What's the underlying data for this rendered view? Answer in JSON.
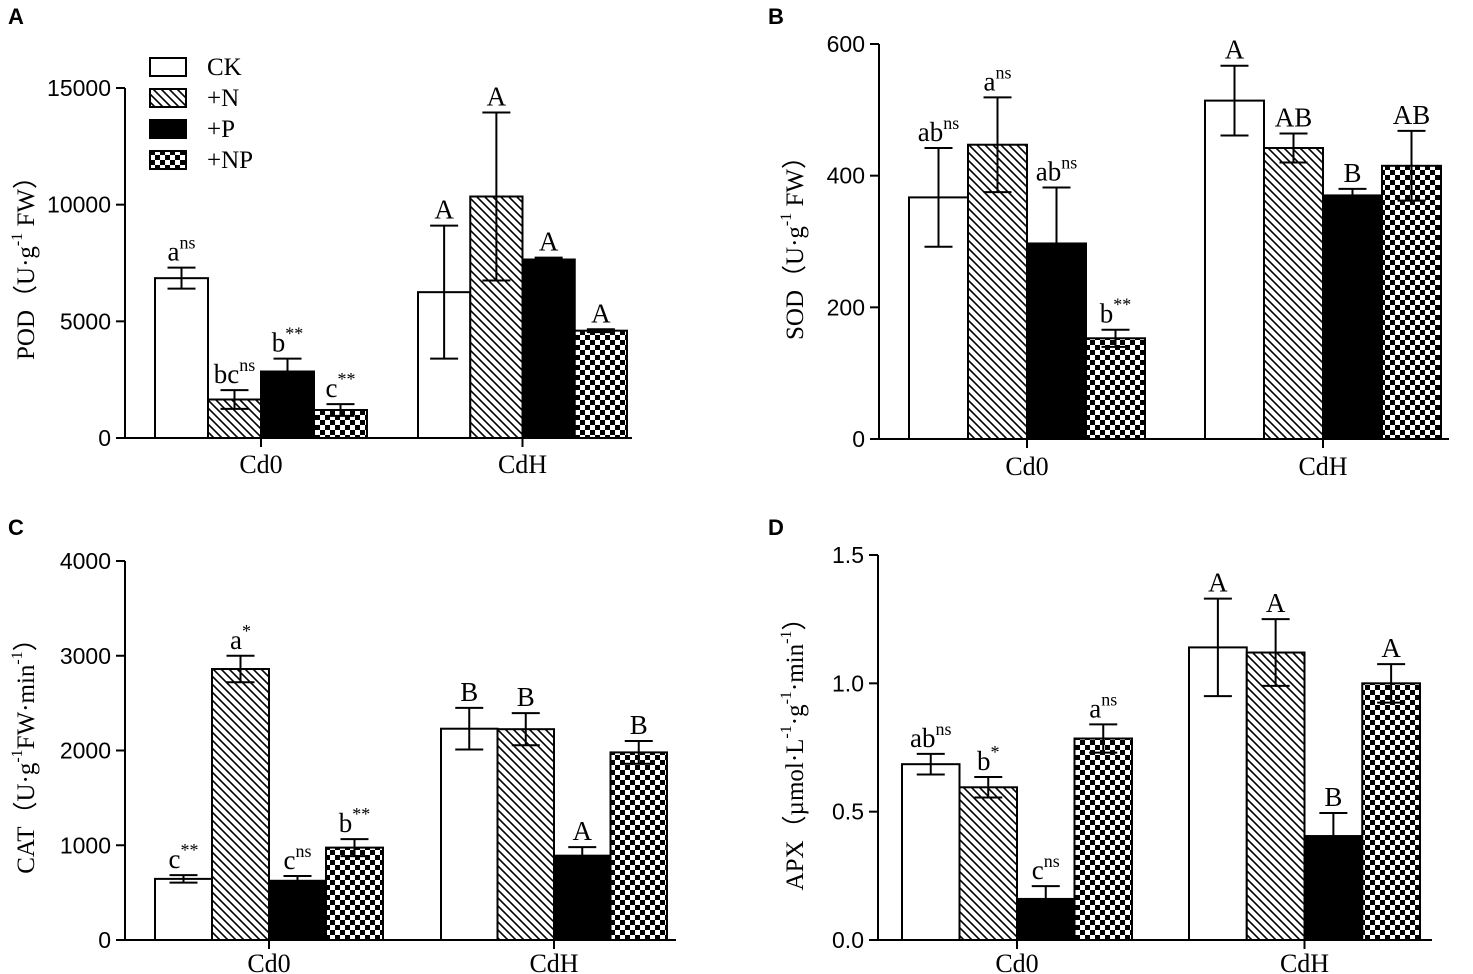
{
  "legend": {
    "items": [
      {
        "label": "CK",
        "pattern": "white"
      },
      {
        "label": "+N",
        "pattern": "hatch"
      },
      {
        "label": "+P",
        "pattern": "black"
      },
      {
        "label": "+NP",
        "pattern": "checker"
      }
    ]
  },
  "colors": {
    "ink": "#000000",
    "paper": "#ffffff"
  },
  "chart_data": [
    {
      "panel": "A",
      "type": "bar",
      "ylabel": "POD (U·g-1 FW)",
      "ylabel_parts": [
        "POD（U·g",
        "-1",
        " FW）"
      ],
      "categories": [
        "Cd0",
        "CdH"
      ],
      "ylim": [
        0,
        15000
      ],
      "yticks": [
        0,
        5000,
        10000,
        15000
      ],
      "series": [
        {
          "name": "CK",
          "values": [
            6850,
            6250
          ],
          "errors": [
            450,
            2850
          ],
          "labels": [
            [
              "a",
              "ns"
            ],
            [
              "A",
              ""
            ]
          ]
        },
        {
          "name": "+N",
          "values": [
            1650,
            10350
          ],
          "errors": [
            400,
            3600
          ],
          "labels": [
            [
              "bc",
              "ns"
            ],
            [
              "A",
              ""
            ]
          ]
        },
        {
          "name": "+P",
          "values": [
            2850,
            7650
          ],
          "errors": [
            550,
            80
          ],
          "labels": [
            [
              "b",
              "**"
            ],
            [
              "A",
              ""
            ]
          ]
        },
        {
          "name": "+NP",
          "values": [
            1200,
            4600
          ],
          "errors": [
            250,
            60
          ],
          "labels": [
            [
              "c",
              "**"
            ],
            [
              "A",
              ""
            ]
          ]
        }
      ]
    },
    {
      "panel": "B",
      "type": "bar",
      "ylabel": "SOD (U·g-1 FW)",
      "ylabel_parts": [
        "SOD（U·g",
        "-1",
        " FW）"
      ],
      "categories": [
        "Cd0",
        "CdH"
      ],
      "ylim": [
        0,
        600
      ],
      "yticks": [
        0,
        200,
        400,
        600
      ],
      "series": [
        {
          "name": "CK",
          "values": [
            367,
            514
          ],
          "errors": [
            75,
            53
          ],
          "labels": [
            [
              "ab",
              "ns"
            ],
            [
              "A",
              ""
            ]
          ]
        },
        {
          "name": "+N",
          "values": [
            447,
            442
          ],
          "errors": [
            72,
            22
          ],
          "labels": [
            [
              "a",
              "ns"
            ],
            [
              "AB",
              ""
            ]
          ]
        },
        {
          "name": "+P",
          "values": [
            297,
            370
          ],
          "errors": [
            85,
            10
          ],
          "labels": [
            [
              "ab",
              "ns"
            ],
            [
              "B",
              ""
            ]
          ]
        },
        {
          "name": "+NP",
          "values": [
            153,
            415
          ],
          "errors": [
            13,
            53
          ],
          "labels": [
            [
              "b",
              "**"
            ],
            [
              "AB",
              ""
            ]
          ]
        }
      ]
    },
    {
      "panel": "C",
      "type": "bar",
      "ylabel": "CAT (U·g-1FW·min-1)",
      "ylabel_parts": [
        "CAT（U·g",
        "-1",
        "FW·min",
        "-1",
        "）"
      ],
      "categories": [
        "Cd0",
        "CdH"
      ],
      "ylim": [
        0,
        4000
      ],
      "yticks": [
        0,
        1000,
        2000,
        3000,
        4000
      ],
      "series": [
        {
          "name": "CK",
          "values": [
            645,
            2230
          ],
          "errors": [
            40,
            220
          ],
          "labels": [
            [
              "c",
              "**"
            ],
            [
              "B",
              ""
            ]
          ]
        },
        {
          "name": "+N",
          "values": [
            2860,
            2225
          ],
          "errors": [
            140,
            170
          ],
          "labels": [
            [
              "a",
              "*"
            ],
            [
              "B",
              ""
            ]
          ]
        },
        {
          "name": "+P",
          "values": [
            625,
            890
          ],
          "errors": [
            50,
            90
          ],
          "labels": [
            [
              "c",
              "ns"
            ],
            [
              "A",
              ""
            ]
          ]
        },
        {
          "name": "+NP",
          "values": [
            975,
            1980
          ],
          "errors": [
            90,
            120
          ],
          "labels": [
            [
              "b",
              "**"
            ],
            [
              "B",
              ""
            ]
          ]
        }
      ]
    },
    {
      "panel": "D",
      "type": "bar",
      "ylabel": "APX (µmol·L-1·g-1·min-1)",
      "ylabel_parts": [
        "APX（µmol·L",
        "-1",
        "·g",
        "-1",
        "·min",
        "-1",
        "）"
      ],
      "categories": [
        "Cd0",
        "CdH"
      ],
      "ylim": [
        0,
        1.5
      ],
      "yticks": [
        "0.0",
        "0.5",
        "1.0",
        "1.5"
      ],
      "series": [
        {
          "name": "CK",
          "values": [
            0.685,
            1.14
          ],
          "errors": [
            0.04,
            0.19
          ],
          "labels": [
            [
              "ab",
              "ns"
            ],
            [
              "A",
              ""
            ]
          ]
        },
        {
          "name": "+N",
          "values": [
            0.595,
            1.12
          ],
          "errors": [
            0.04,
            0.13
          ],
          "labels": [
            [
              "b",
              "*"
            ],
            [
              "A",
              ""
            ]
          ]
        },
        {
          "name": "+P",
          "values": [
            0.16,
            0.405
          ],
          "errors": [
            0.05,
            0.09
          ],
          "labels": [
            [
              "c",
              "ns"
            ],
            [
              "B",
              ""
            ]
          ]
        },
        {
          "name": "+NP",
          "values": [
            0.785,
            1.0
          ],
          "errors": [
            0.055,
            0.075
          ],
          "labels": [
            [
              "a",
              "ns"
            ],
            [
              "A",
              ""
            ]
          ]
        }
      ]
    }
  ]
}
